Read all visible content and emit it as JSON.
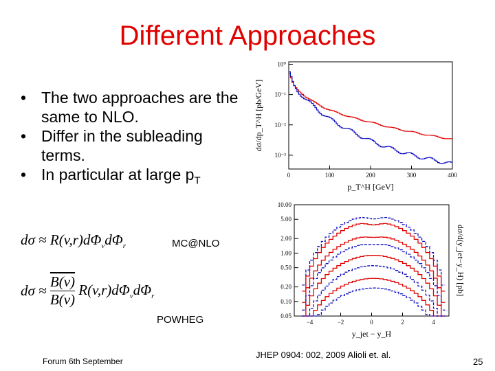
{
  "slide": {
    "title": "Different Approaches",
    "bullets": [
      {
        "text": "The two approaches are the same to NLO."
      },
      {
        "text": "Differ in the subleading terms."
      },
      {
        "text": "In particular at large p",
        "sub": "T"
      }
    ],
    "eq1_label": "MC@NLO",
    "eq2_label": "POWHEG",
    "footer": "Forum 6th September",
    "reference": "JHEP 0904: 002, 2009 Alioli et. al.",
    "page_number": "25"
  },
  "colors": {
    "title": "#e00000",
    "series_red": "#e00000",
    "series_blue": "#1010c0"
  },
  "chart_data": [
    {
      "type": "line",
      "xlabel": "p_T^H [GeV]",
      "ylabel": "dσ/dp_T^H [pb/GeV]",
      "xlim": [
        0,
        400
      ],
      "ylim": [
        0.00035,
        1.2
      ],
      "yscale": "log",
      "x_ticks": [
        "0",
        "100",
        "200",
        "300",
        "400"
      ],
      "y_ticks": [
        "10⁰",
        "10⁻¹",
        "10⁻²",
        "10⁻³"
      ],
      "series": [
        {
          "color": "red",
          "x": [
            0,
            10,
            20,
            30,
            40,
            60,
            80,
            100,
            150,
            200,
            250,
            300,
            350,
            400
          ],
          "y": [
            0.5,
            0.2,
            0.14,
            0.11,
            0.085,
            0.056,
            0.04,
            0.03,
            0.018,
            0.012,
            0.008,
            0.0058,
            0.0043,
            0.0033
          ]
        },
        {
          "color": "blue",
          "x": [
            0,
            10,
            20,
            30,
            40,
            60,
            80,
            100,
            150,
            200,
            250,
            300,
            350,
            400
          ],
          "y": [
            0.5,
            0.2,
            0.13,
            0.095,
            0.07,
            0.04,
            0.024,
            0.015,
            0.0062,
            0.0029,
            0.0016,
            0.001,
            0.0007,
            0.0005
          ]
        }
      ]
    },
    {
      "type": "line",
      "xlabel": "y_jet − y_H",
      "ylabel": "dσ/d(y_jet−y_H) [pb]",
      "xlim": [
        -5,
        5
      ],
      "ylim": [
        0.05,
        10
      ],
      "yscale": "log",
      "x_ticks": [
        "−4",
        "−2",
        "0",
        "2",
        "4"
      ],
      "y_ticks": [
        "10.00",
        "5.00",
        "2.00",
        "1.00",
        "0.50",
        "0.20",
        "0.10",
        "0.05"
      ],
      "series": [
        {
          "color": "blue",
          "peak": 6.0,
          "width": 3.2,
          "dip": 0.15
        },
        {
          "color": "red",
          "peak": 4.5,
          "width": 3.2,
          "dip": 0.15
        },
        {
          "color": "red",
          "peak": 2.3,
          "width": 3.3,
          "dip": 0.08
        },
        {
          "color": "blue",
          "peak": 1.6,
          "width": 3.3,
          "dip": 0.06
        },
        {
          "color": "red",
          "peak": 0.9,
          "width": 3.4,
          "dip": 0.0
        },
        {
          "color": "blue",
          "peak": 0.55,
          "width": 3.3,
          "dip": 0.0
        },
        {
          "color": "red",
          "peak": 0.3,
          "width": 3.5,
          "dip": 0.0
        },
        {
          "color": "blue",
          "peak": 0.19,
          "width": 3.5,
          "dip": 0.0
        }
      ]
    }
  ]
}
